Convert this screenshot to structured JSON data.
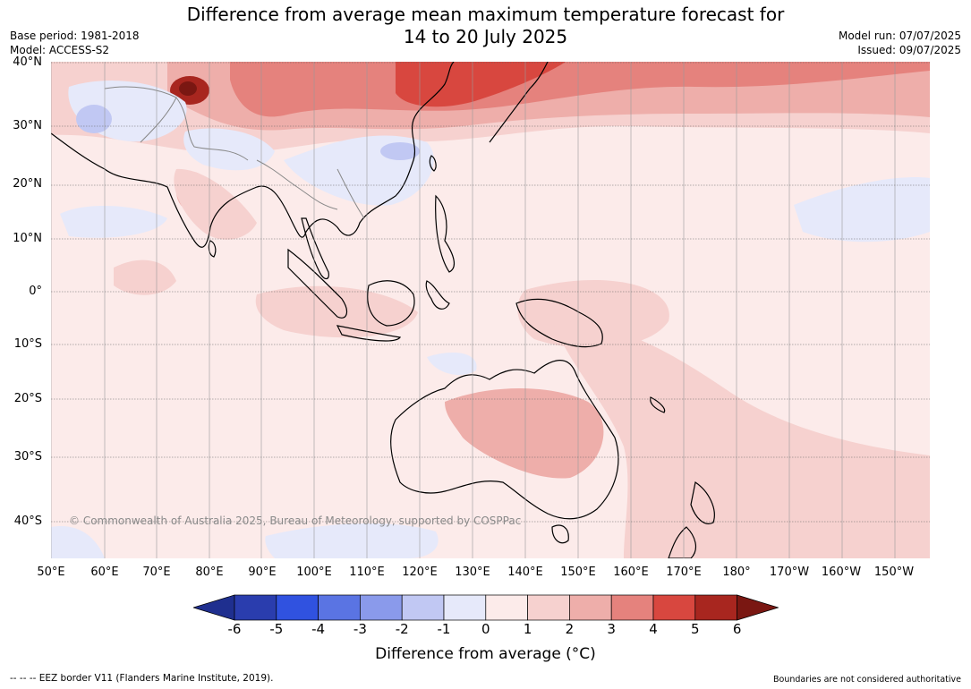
{
  "header": {
    "title_line1": "Difference from average mean maximum temperature forecast for",
    "title_line2": "14 to 20 July 2025",
    "base_period": "Base period: 1981-2018",
    "model": "Model: ACCESS-S2",
    "model_run": "Model run: 07/07/2025",
    "issued": "Issued: 09/07/2025"
  },
  "map": {
    "lat_labels": [
      "40°N",
      "30°N",
      "20°N",
      "10°N",
      "0°",
      "10°S",
      "20°S",
      "30°S",
      "40°S"
    ],
    "lon_labels": [
      "50°E",
      "60°E",
      "70°E",
      "80°E",
      "90°E",
      "100°E",
      "110°E",
      "120°E",
      "130°E",
      "140°E",
      "150°E",
      "160°E",
      "170°E",
      "180°",
      "170°W",
      "160°W",
      "150°W"
    ],
    "copyright": "© Commonwealth of Australia 2025, Bureau of Meteorology, supported by COSPPac"
  },
  "colorbar": {
    "ticks": [
      "-6",
      "-5",
      "-4",
      "-3",
      "-2",
      "-1",
      "0",
      "1",
      "2",
      "3",
      "4",
      "5",
      "6"
    ],
    "colors": [
      "#1f2f8f",
      "#2a3dae",
      "#3052e0",
      "#5a74e3",
      "#8a9aeb",
      "#c1c8f3",
      "#e6e9fa",
      "#fcebea",
      "#f6d1cf",
      "#eeaeaa",
      "#e5827d",
      "#d8473f",
      "#a8261f",
      "#7a1712"
    ],
    "label": "Difference from average (°C)"
  },
  "footer": {
    "eez_note": "--  --  -- EEZ border V11 (Flanders Marine Institute, 2019).",
    "boundaries_note": "Boundaries are not considered authoritative"
  }
}
